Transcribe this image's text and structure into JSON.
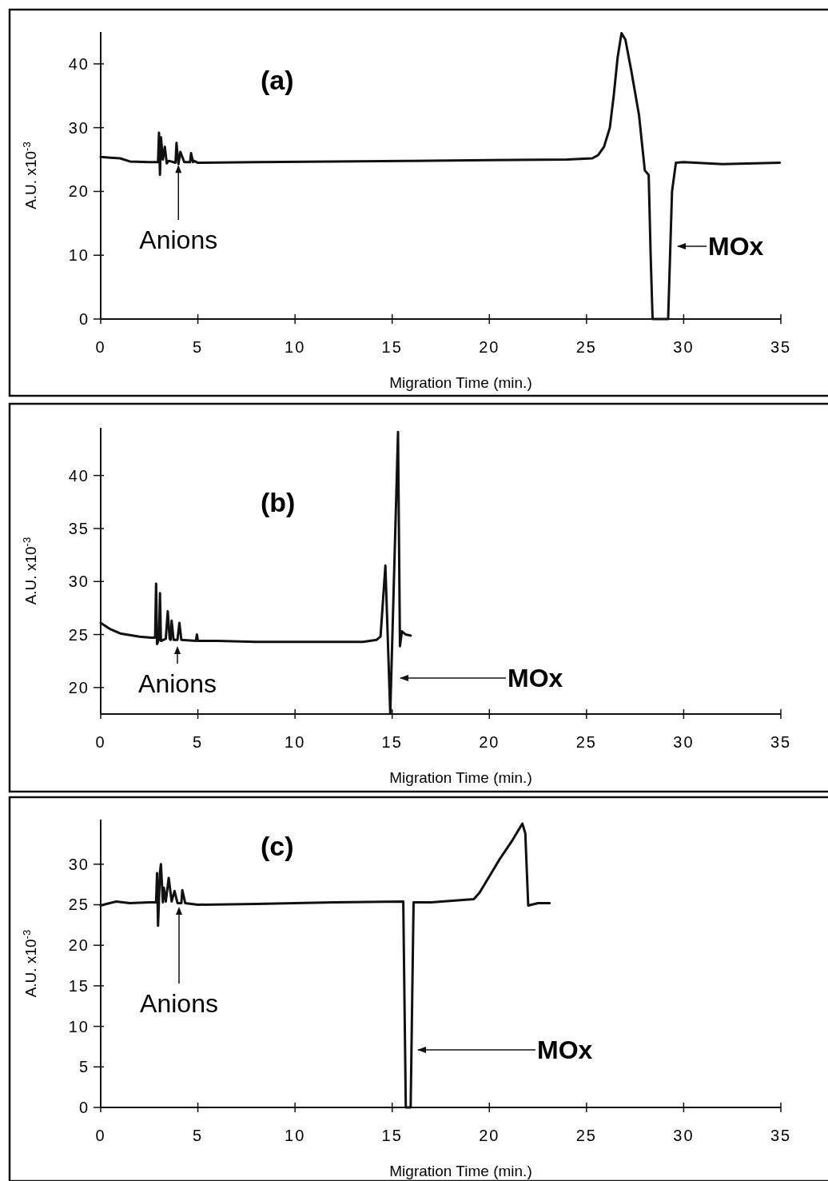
{
  "chart_data": [
    {
      "type": "line",
      "title": "(a)",
      "xlabel": "Migration Time (min.)",
      "ylabel": "A.U. x10$^{-3}$",
      "xlim": [
        0,
        35
      ],
      "xticks": [
        0,
        5,
        10,
        15,
        20,
        25,
        30,
        35
      ],
      "ylim": [
        0,
        45
      ],
      "yticks": [
        0,
        10,
        20,
        30,
        40
      ],
      "x": [
        0,
        0.5,
        1,
        1.5,
        2.5,
        2.95,
        3.0,
        3.05,
        3.1,
        3.2,
        3.3,
        3.4,
        3.5,
        3.85,
        3.9,
        4.0,
        4.1,
        4.3,
        4.6,
        4.65,
        4.75,
        4.8,
        5,
        8,
        12,
        16,
        20,
        24,
        25.3,
        25.6,
        25.9,
        26.2,
        26.4,
        26.6,
        26.8,
        27.0,
        27.3,
        27.7,
        28.0,
        28.2,
        28.3,
        28.4,
        29.2,
        29.4,
        29.6,
        30,
        32,
        34.95
      ],
      "series": [
        {
          "color": "#111111",
          "values": [
            25.4,
            25.3,
            25.2,
            24.7,
            24.6,
            24.6,
            29.2,
            22.6,
            28.5,
            25,
            27,
            24.4,
            24.8,
            24.5,
            27.6,
            24.3,
            26.2,
            24.6,
            24.6,
            26,
            24.6,
            24.8,
            24.5,
            24.6,
            24.7,
            24.8,
            24.9,
            25.0,
            25.2,
            25.7,
            27,
            30,
            35,
            41,
            44.8,
            43.8,
            39,
            32,
            23.3,
            22.6,
            10,
            0,
            0,
            20,
            24.5,
            24.6,
            24.3,
            24.5
          ]
        }
      ],
      "annotations": [
        {
          "text": "Anions",
          "x": 4,
          "y": 24.4
        },
        "MOx"
      ]
    },
    {
      "type": "line",
      "title": "(b)",
      "xlabel": "Migration Time (min.)",
      "ylabel": "A.U. x10$^{-3}$",
      "xlim": [
        0,
        35
      ],
      "xticks": [
        0,
        5,
        10,
        15,
        20,
        25,
        30,
        35
      ],
      "ylim": [
        17.5,
        44.5
      ],
      "yticks": [
        20,
        25,
        30,
        35,
        40
      ],
      "x": [
        0,
        0.5,
        1,
        2,
        2.6,
        2.8,
        2.85,
        2.9,
        3.0,
        3.05,
        3.1,
        3.35,
        3.45,
        3.55,
        3.6,
        3.65,
        3.75,
        3.95,
        4.05,
        4.15,
        4.9,
        4.95,
        5.0,
        6,
        8,
        10,
        12,
        13.5,
        14.2,
        14.4,
        14.65,
        14.9,
        15.3,
        15.4,
        15.5,
        15.7,
        15.95
      ],
      "series": [
        {
          "color": "#111111",
          "values": [
            26.1,
            25.5,
            25.1,
            24.8,
            24.7,
            24.7,
            29.8,
            24.1,
            24.6,
            28.9,
            24.4,
            24.6,
            27.2,
            24.6,
            24.5,
            26.3,
            24.5,
            24.5,
            26.1,
            24.5,
            24.4,
            25.0,
            24.4,
            24.4,
            24.3,
            24.3,
            24.3,
            24.3,
            24.5,
            24.8,
            31.5,
            17.6,
            44.1,
            23.9,
            25.3,
            25.0,
            24.9
          ]
        }
      ],
      "annotations": [
        "Anions",
        "MOx"
      ]
    },
    {
      "type": "line",
      "title": "(c)",
      "xlabel": "Migration Time (min.)",
      "ylabel": "A.U. x10$^{-3}$",
      "xlim": [
        0,
        35
      ],
      "xticks": [
        0,
        5,
        10,
        15,
        20,
        25,
        30,
        35
      ],
      "ylim": [
        0,
        35.5
      ],
      "yticks": [
        0,
        5,
        10,
        15,
        20,
        25,
        30
      ],
      "x": [
        0,
        0.3,
        0.8,
        1.5,
        2.5,
        2.85,
        2.9,
        2.95,
        3.05,
        3.1,
        3.2,
        3.25,
        3.35,
        3.5,
        3.65,
        3.8,
        3.95,
        4.15,
        4.2,
        4.35,
        5,
        8,
        12,
        15.57,
        15.7,
        15.95,
        16.1,
        17,
        19.2,
        19.5,
        20.5,
        21.2,
        21.7,
        21.85,
        22.0,
        22.5,
        23.1
      ],
      "series": [
        {
          "color": "#111111",
          "values": [
            24.9,
            25.1,
            25.4,
            25.2,
            25.3,
            25.3,
            28.9,
            22.4,
            29.0,
            30.0,
            25.3,
            27.1,
            25.4,
            28.3,
            25.4,
            26.7,
            25.2,
            25.2,
            26.8,
            25.2,
            25.0,
            25.1,
            25.3,
            25.4,
            0,
            0,
            25.3,
            25.3,
            25.7,
            26.5,
            30.5,
            33.0,
            35.0,
            33.8,
            24.9,
            25.2,
            25.2
          ]
        }
      ],
      "annotations": [
        "Anions",
        "MOx"
      ]
    }
  ]
}
